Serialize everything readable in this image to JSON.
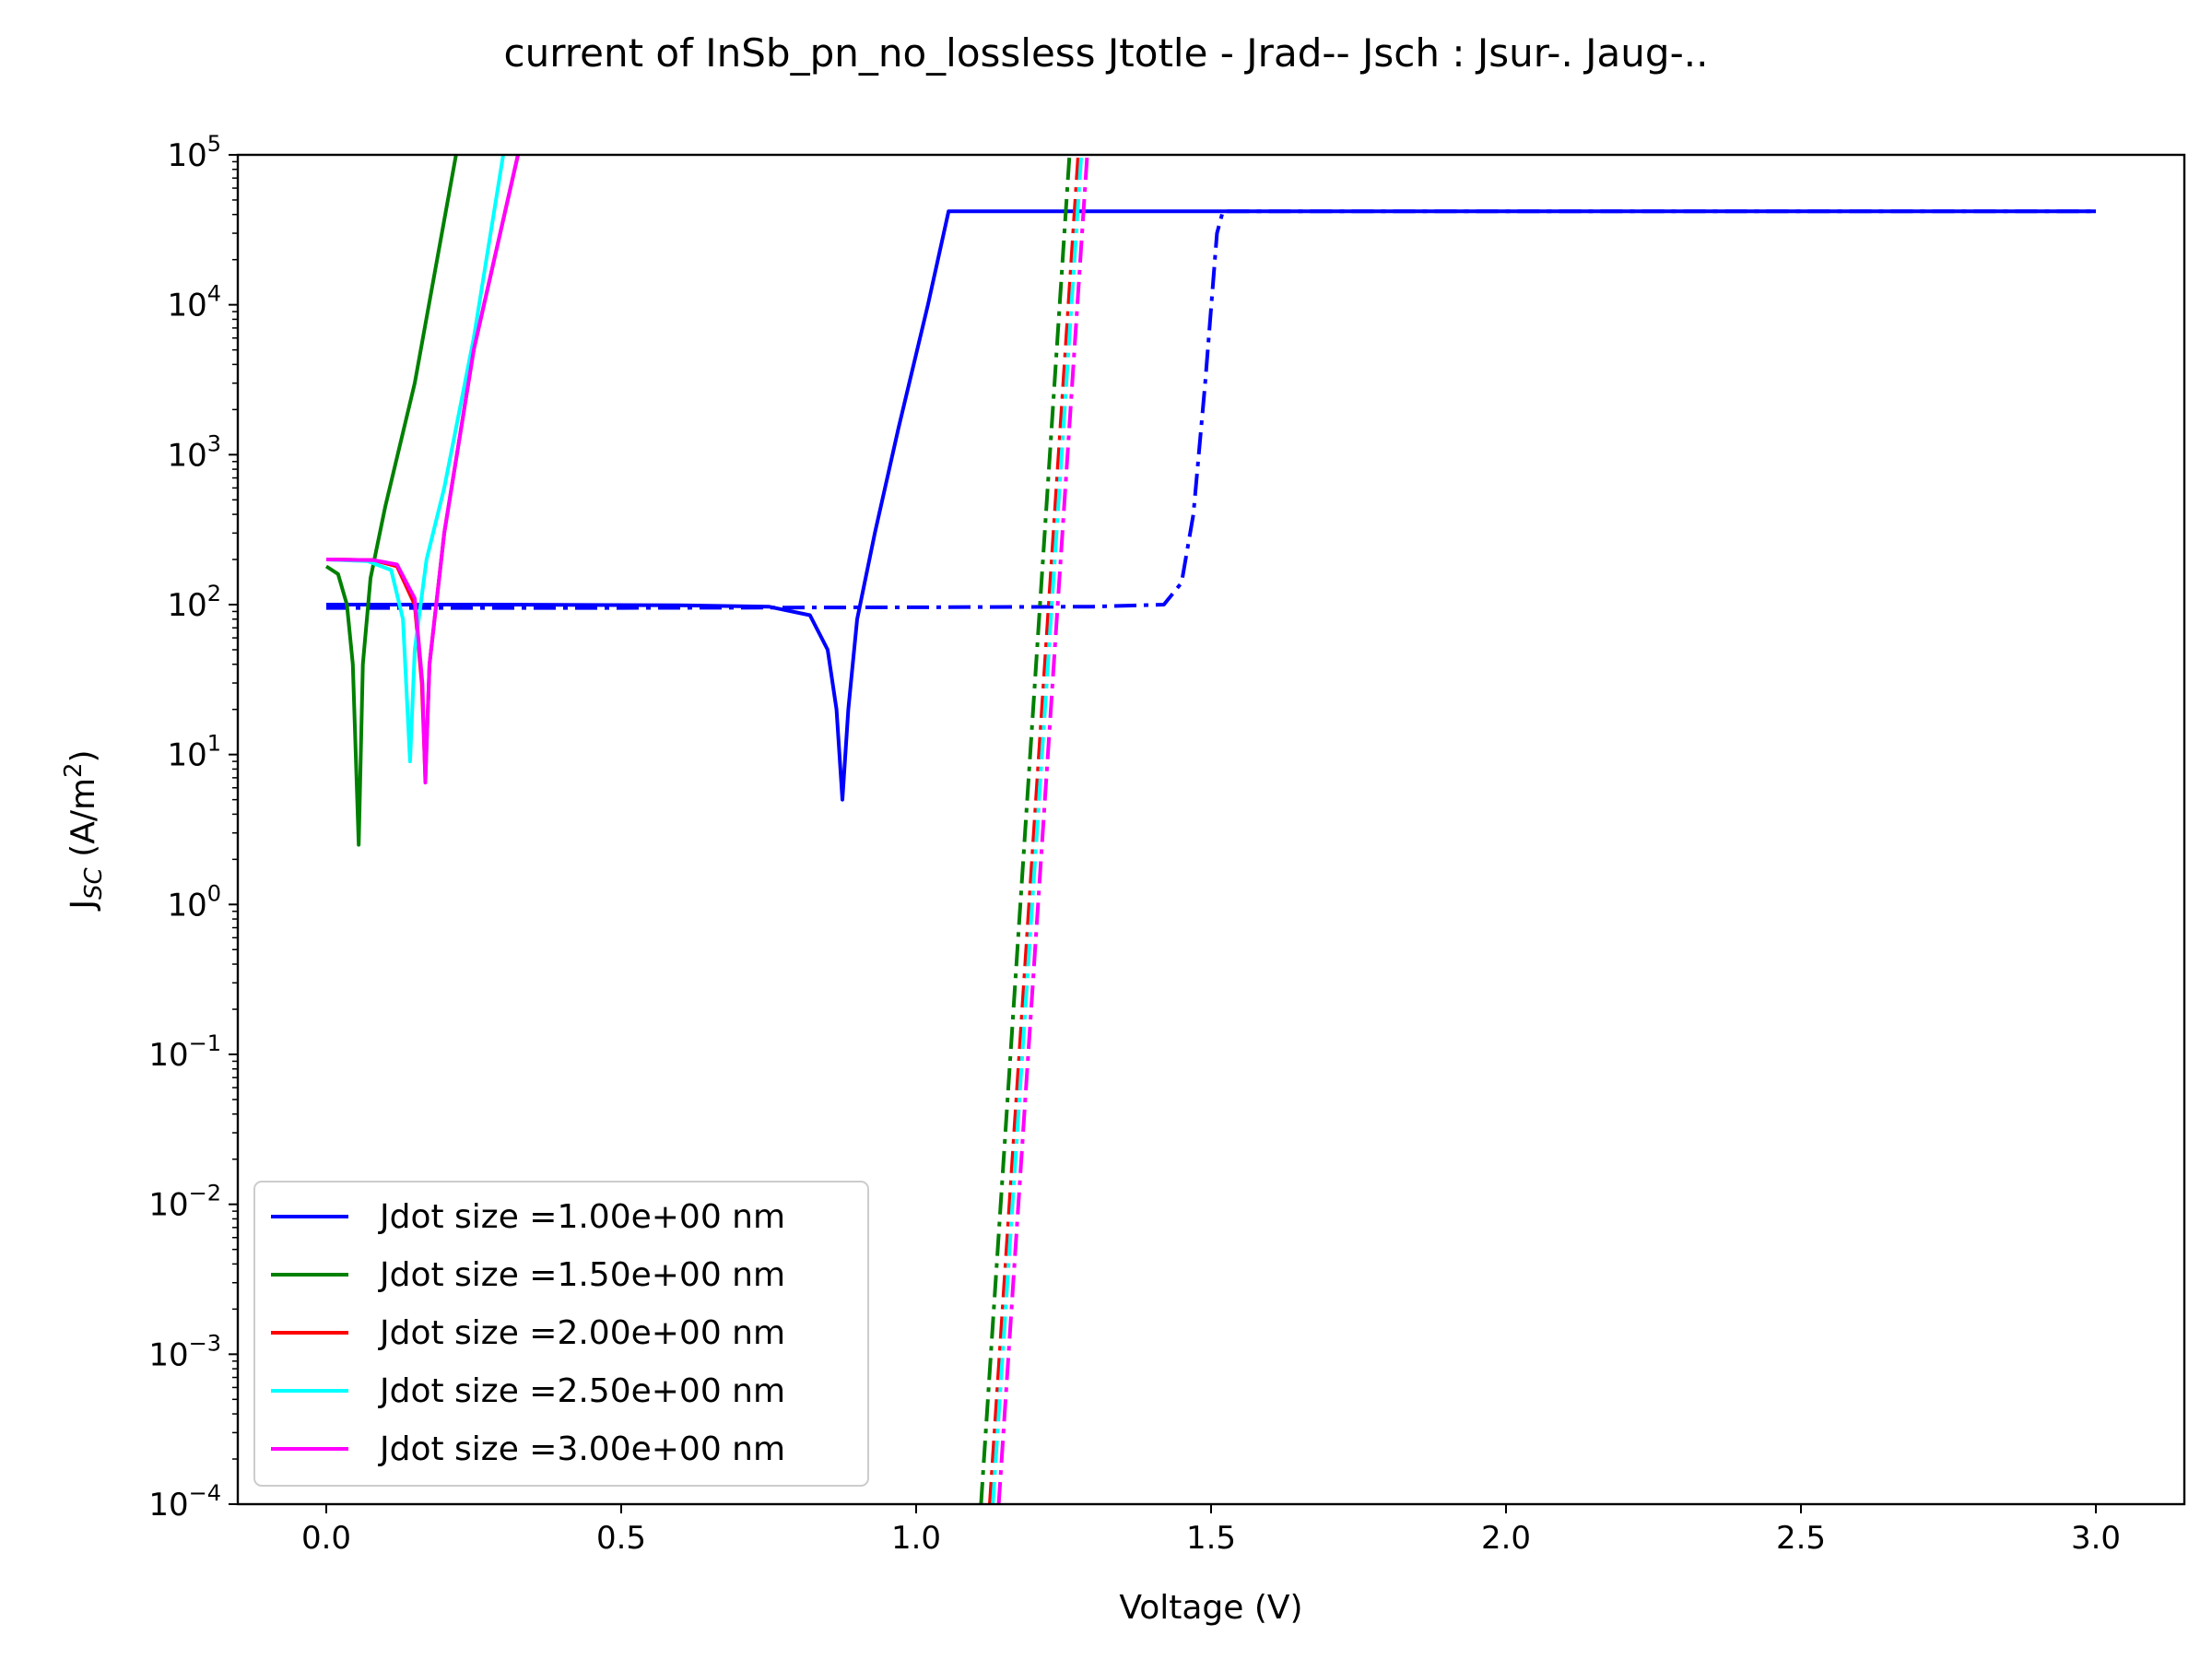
{
  "chart_data": {
    "type": "line",
    "title": "current of InSb_pn_no_lossless Jtotle - Jrad-- Jsch : Jsur-. Jaug-..",
    "xlabel": "Voltage (V)",
    "ylabel_main": "J",
    "ylabel_sub": "SC",
    "ylabel_unit_pre": " (A/m",
    "ylabel_unit_sup": "2",
    "ylabel_unit_post": ")",
    "xscale": "linear",
    "yscale": "log",
    "xlim": [
      -0.15,
      3.15
    ],
    "ylim": [
      0.0001,
      100000
    ],
    "x_ticks": [
      0.0,
      0.5,
      1.0,
      1.5,
      2.0,
      2.5,
      3.0
    ],
    "x_tick_labels": [
      "0.0",
      "0.5",
      "1.0",
      "1.5",
      "2.0",
      "2.5",
      "3.0"
    ],
    "y_tick_exponents": [
      -4,
      -3,
      -2,
      -1,
      0,
      1,
      2,
      3,
      4,
      5
    ],
    "y_tick_base": "10",
    "y_tick_sup_labels": [
      "−4",
      "−3",
      "−2",
      "−1",
      "0",
      "1",
      "2",
      "3",
      "4",
      "5"
    ],
    "legend_location": "lower-left",
    "legend": [
      {
        "label": "Jdot size =1.00e+00 nm",
        "color": "#0000ff"
      },
      {
        "label": "Jdot size =1.50e+00 nm",
        "color": "#008000"
      },
      {
        "label": "Jdot size =2.00e+00 nm",
        "color": "#ff0000"
      },
      {
        "label": "Jdot size =2.50e+00 nm",
        "color": "#00ffff"
      },
      {
        "label": "Jdot size =3.00e+00 nm",
        "color": "#ff00ff"
      }
    ],
    "series": [
      {
        "name": "Jdot size =1.00e+00 nm total",
        "color": "#0000ff",
        "style": "solid",
        "points": [
          [
            0.0,
            100
          ],
          [
            0.3,
            100
          ],
          [
            0.6,
            99
          ],
          [
            0.75,
            97
          ],
          [
            0.82,
            85
          ],
          [
            0.85,
            50
          ],
          [
            0.865,
            20
          ],
          [
            0.875,
            5
          ],
          [
            0.885,
            20
          ],
          [
            0.9,
            80
          ],
          [
            0.93,
            300
          ],
          [
            0.97,
            1500
          ],
          [
            1.02,
            10000
          ],
          [
            1.055,
            42000
          ],
          [
            1.1,
            42000
          ],
          [
            2.0,
            42000
          ],
          [
            3.0,
            42000
          ]
        ]
      },
      {
        "name": "Jdot size =1.00e+00 nm Jsur",
        "color": "#0000ff",
        "style": "dashdot",
        "points": [
          [
            0.0,
            95
          ],
          [
            0.5,
            95
          ],
          [
            1.0,
            96
          ],
          [
            1.3,
            97
          ],
          [
            1.42,
            100
          ],
          [
            1.45,
            140
          ],
          [
            1.47,
            400
          ],
          [
            1.49,
            3000
          ],
          [
            1.51,
            30000
          ],
          [
            1.52,
            42000
          ],
          [
            2.0,
            42000
          ],
          [
            3.0,
            42000
          ]
        ]
      },
      {
        "name": "Jdot size =1.50e+00 nm total",
        "color": "#008000",
        "style": "solid",
        "points": [
          [
            0.0,
            180
          ],
          [
            0.02,
            160
          ],
          [
            0.035,
            100
          ],
          [
            0.045,
            40
          ],
          [
            0.055,
            2.5
          ],
          [
            0.062,
            40
          ],
          [
            0.075,
            150
          ],
          [
            0.1,
            450
          ],
          [
            0.15,
            3000
          ],
          [
            0.22,
            100000
          ]
        ]
      },
      {
        "name": "Jdot size =1.50e+00 nm Jsur",
        "color": "#008000",
        "style": "dashdot",
        "points": [
          [
            1.11,
            0.0001
          ],
          [
            1.26,
            100000
          ]
        ]
      },
      {
        "name": "Jdot size =2.00e+00 nm total",
        "color": "#ff0000",
        "style": "solid",
        "points": [
          [
            0.0,
            200
          ],
          [
            0.08,
            198
          ],
          [
            0.12,
            180
          ],
          [
            0.15,
            100
          ],
          [
            0.162,
            30
          ],
          [
            0.168,
            7
          ],
          [
            0.175,
            40
          ],
          [
            0.2,
            300
          ],
          [
            0.25,
            5000
          ],
          [
            0.325,
            100000
          ]
        ]
      },
      {
        "name": "Jdot size =2.00e+00 nm Jsur",
        "color": "#ff0000",
        "style": "dashdot",
        "points": [
          [
            1.125,
            0.0001
          ],
          [
            1.275,
            100000
          ]
        ]
      },
      {
        "name": "Jdot size =2.50e+00 nm total",
        "color": "#00ffff",
        "style": "solid",
        "points": [
          [
            0.0,
            200
          ],
          [
            0.07,
            195
          ],
          [
            0.11,
            170
          ],
          [
            0.13,
            80
          ],
          [
            0.142,
            9
          ],
          [
            0.15,
            50
          ],
          [
            0.17,
            200
          ],
          [
            0.2,
            600
          ],
          [
            0.25,
            6000
          ],
          [
            0.3,
            100000
          ]
        ]
      },
      {
        "name": "Jdot size =2.50e+00 nm Jsur",
        "color": "#00ffff",
        "style": "dashdot",
        "points": [
          [
            1.13,
            0.0001
          ],
          [
            1.28,
            100000
          ]
        ]
      },
      {
        "name": "Jdot size =3.00e+00 nm total",
        "color": "#ff00ff",
        "style": "solid",
        "points": [
          [
            0.0,
            200
          ],
          [
            0.08,
            198
          ],
          [
            0.12,
            185
          ],
          [
            0.15,
            110
          ],
          [
            0.163,
            30
          ],
          [
            0.168,
            6.5
          ],
          [
            0.175,
            40
          ],
          [
            0.2,
            300
          ],
          [
            0.25,
            5000
          ],
          [
            0.325,
            100000
          ]
        ]
      },
      {
        "name": "Jdot size =3.00e+00 nm Jsur",
        "color": "#ff00ff",
        "style": "dashdot",
        "points": [
          [
            1.14,
            0.0001
          ],
          [
            1.29,
            100000
          ]
        ]
      }
    ]
  }
}
